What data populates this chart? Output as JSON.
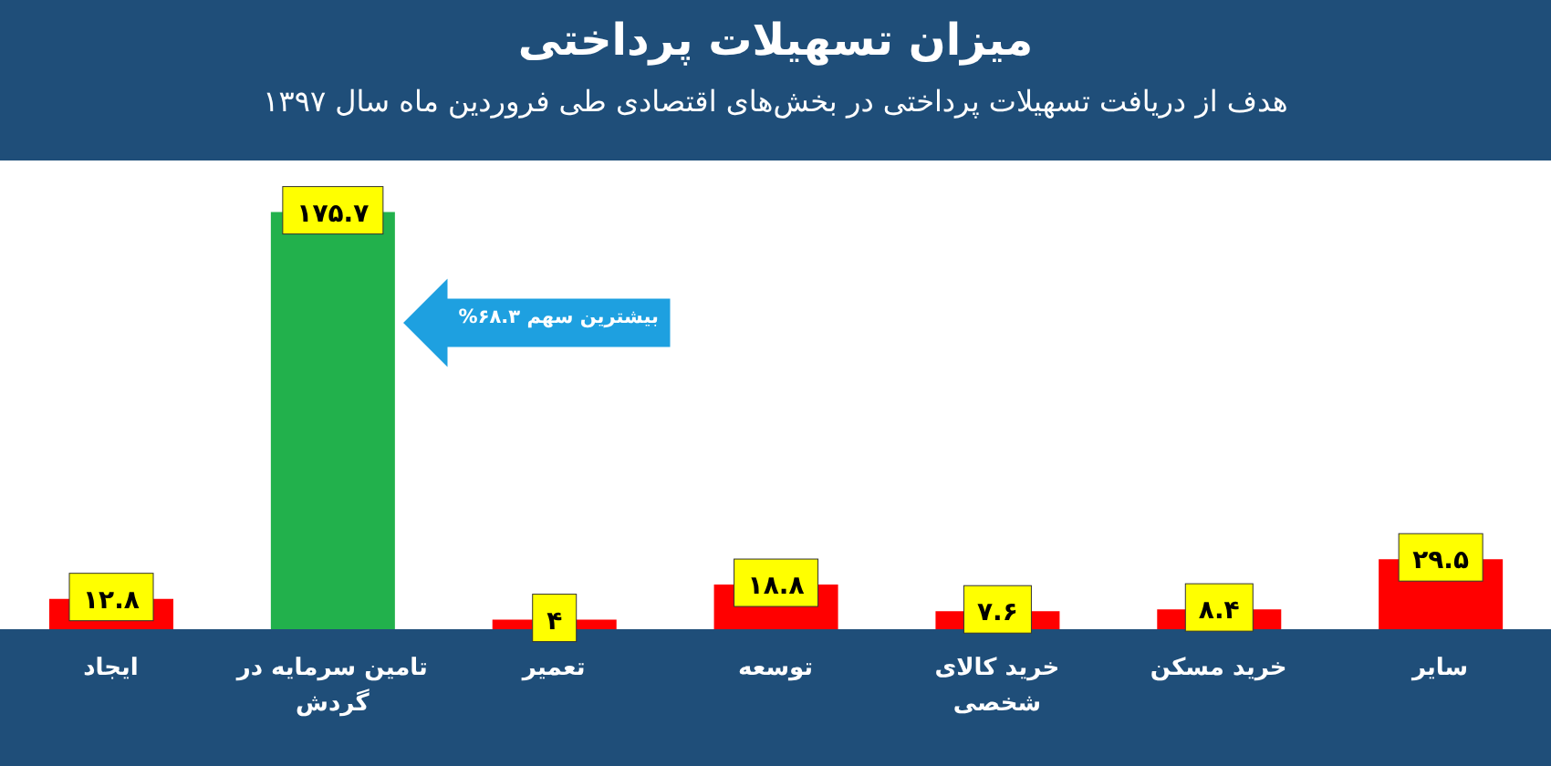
{
  "chart_data": {
    "type": "bar",
    "title": "میزان تسهیلات پرداختی",
    "subtitle": "هدف از دریافت تسهیلات پرداختی در بخش‌های اقتصادی طی فروردین ماه سال ۱۳۹۷",
    "categories": [
      "ایجاد",
      "تامین سرمایه در گردش",
      "تعمیر",
      "توسعه",
      "خرید کالای شخصی",
      "خرید مسکن",
      "سایر"
    ],
    "values": [
      12.8,
      175.7,
      4,
      18.8,
      7.6,
      8.4,
      29.5
    ],
    "value_labels": [
      "۱۲.۸",
      "۱۷۵.۷",
      "۴",
      "۱۸.۸",
      "۷.۶",
      "۸.۴",
      "۲۹.۵"
    ],
    "colors": [
      "#ff0000",
      "#22b14c",
      "#ff0000",
      "#ff0000",
      "#ff0000",
      "#ff0000",
      "#ff0000"
    ],
    "annotations": [
      "بیشترین سهم ۶۸.۳%"
    ],
    "grid": false,
    "legend": false
  }
}
